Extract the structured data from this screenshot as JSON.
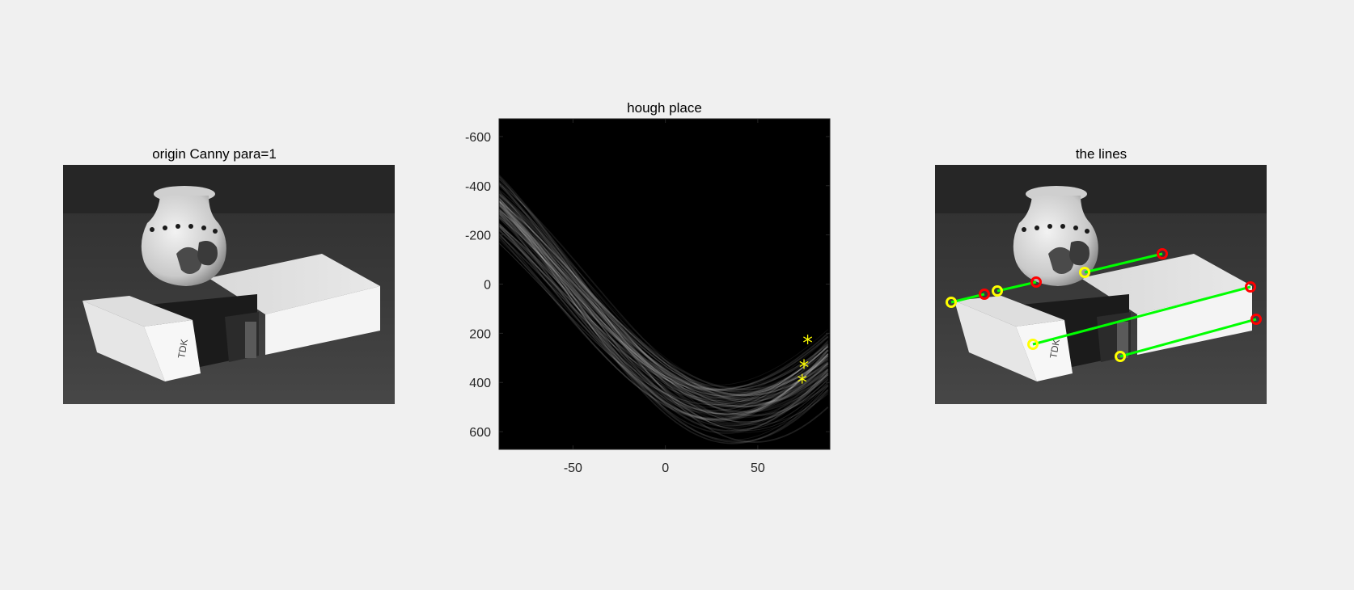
{
  "figure": {
    "panels": [
      {
        "title": "origin Canny para=1"
      },
      {
        "title": "hough place"
      },
      {
        "title": "the lines"
      }
    ]
  },
  "chart_data": [
    {
      "type": "image",
      "title": "origin Canny para=1",
      "content": "grayscale photograph: vase on a white TDK box"
    },
    {
      "type": "heatmap",
      "title": "hough place",
      "xlabel": "",
      "ylabel": "",
      "xlim": [
        -90,
        89
      ],
      "ylim": [
        -672,
        672
      ],
      "y_reversed": true,
      "x_ticks": [
        -50,
        0,
        50
      ],
      "y_ticks": [
        -600,
        -400,
        -200,
        0,
        200,
        400,
        600
      ],
      "colormap": "gray",
      "peaks": [
        {
          "theta": 77,
          "rho": 225
        },
        {
          "theta": 75,
          "rho": 325
        },
        {
          "theta": 74,
          "rho": 385
        }
      ],
      "peak_marker_color": "#ffff00"
    },
    {
      "type": "image",
      "title": "the lines",
      "content": "grayscale photograph with detected line segments overlaid",
      "line_color": "#00ff00",
      "start_marker_color": "#ffff00",
      "end_marker_color": "#ff0000"
    }
  ]
}
